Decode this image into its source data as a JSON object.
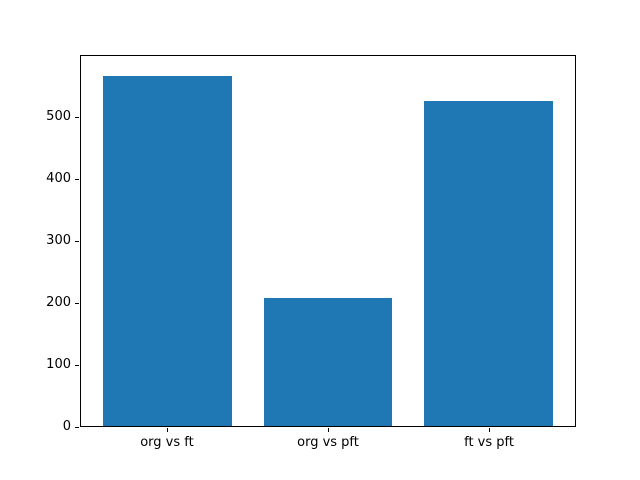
{
  "figure": {
    "background_color": "#ffffff",
    "title": ""
  },
  "chart_data": {
    "type": "bar",
    "title": "",
    "xlabel": "",
    "ylabel": "",
    "categories": [
      "org vs ft",
      "org vs pft",
      "ft vs pft"
    ],
    "values": [
      568,
      207,
      527
    ],
    "bar_color": "#1f77b4",
    "bar_width_fraction": 0.8,
    "ylim": [
      0,
      600
    ],
    "yticks": [
      0,
      100,
      200,
      300,
      400,
      500
    ],
    "grid": false,
    "legend_position": "none",
    "axis_color": "#000000",
    "text_color": "#000000"
  }
}
